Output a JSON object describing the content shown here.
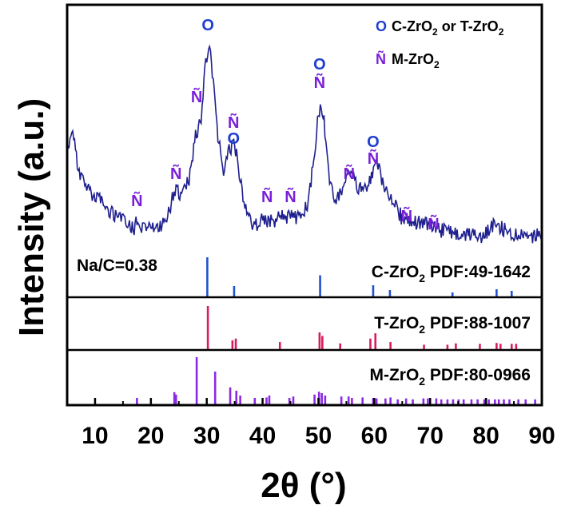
{
  "chart_data": {
    "type": "line",
    "xlabel": "2θ (°)",
    "ylabel": "Intensity (a.u.)",
    "xlim": [
      5,
      90
    ],
    "x_ticks": [
      10,
      20,
      30,
      40,
      50,
      60,
      70,
      80,
      90
    ],
    "x_tick_labels": [
      "10",
      "20",
      "30",
      "40",
      "50",
      "60",
      "70",
      "80",
      "90"
    ],
    "sample_label": "Na/C=0.38",
    "series": [
      {
        "color": "#1f1f8f",
        "x": [
          5,
          6,
          7,
          8,
          9,
          10,
          11,
          12,
          13,
          14,
          15,
          16,
          17,
          17.5,
          18,
          19,
          20,
          21,
          22,
          23,
          24,
          24.5,
          25,
          26,
          27,
          28,
          28.5,
          29,
          29.5,
          30,
          30.5,
          31,
          32,
          33,
          34,
          35,
          36,
          37,
          38,
          39,
          40,
          41,
          42,
          43,
          44,
          45,
          46,
          47,
          48,
          49,
          50,
          50.5,
          51,
          52,
          53,
          54,
          55,
          56,
          57,
          58,
          59,
          60,
          61,
          62,
          63,
          64,
          65,
          66,
          67,
          68,
          69,
          70,
          71,
          72,
          73,
          74,
          75,
          76,
          77,
          78,
          79,
          80,
          81,
          82,
          83,
          84,
          85,
          86,
          87,
          88,
          89,
          90
        ],
        "y": [
          520,
          600,
          430,
          390,
          360,
          340,
          325,
          305,
          285,
          270,
          255,
          235,
          225,
          245,
          235,
          225,
          215,
          225,
          235,
          275,
          345,
          370,
          350,
          370,
          420,
          590,
          600,
          620,
          800,
          880,
          920,
          820,
          560,
          450,
          520,
          540,
          415,
          285,
          245,
          240,
          265,
          250,
          245,
          265,
          270,
          265,
          260,
          275,
          305,
          460,
          650,
          670,
          620,
          390,
          335,
          350,
          410,
          420,
          380,
          360,
          400,
          460,
          440,
          360,
          340,
          300,
          260,
          250,
          245,
          245,
          238,
          230,
          225,
          215,
          210,
          205,
          200,
          200,
          195,
          195,
          195,
          210,
          235,
          240,
          225,
          210,
          200,
          200,
          195,
          195,
          200,
          200
        ]
      }
    ],
    "peak_markers": [
      {
        "x": 17.5,
        "symbol": "Ñ"
      },
      {
        "x": 24.5,
        "symbol": "Ñ"
      },
      {
        "x": 28.2,
        "symbol": "Ñ"
      },
      {
        "x": 30.2,
        "symbol": "O"
      },
      {
        "x": 34.8,
        "symbol": "Ñ"
      },
      {
        "x": 34.8,
        "symbol": "O"
      },
      {
        "x": 40.8,
        "symbol": "Ñ"
      },
      {
        "x": 45.0,
        "symbol": "Ñ"
      },
      {
        "x": 50.2,
        "symbol": "O"
      },
      {
        "x": 50.2,
        "symbol": "Ñ"
      },
      {
        "x": 55.5,
        "symbol": "Ñ"
      },
      {
        "x": 59.8,
        "symbol": "O"
      },
      {
        "x": 59.8,
        "symbol": "Ñ"
      },
      {
        "x": 65.8,
        "symbol": "Ñ"
      },
      {
        "x": 70.6,
        "symbol": "Ñ"
      }
    ],
    "legend": {
      "placement": "top-right",
      "entries": [
        {
          "symbol": "O",
          "label": "C-ZrO",
          "sub": "2",
          "label2": " or T-ZrO",
          "sub2": "2",
          "color": "#1f3fd0"
        },
        {
          "symbol": "Ñ",
          "label": "M-ZrO",
          "sub": "2",
          "label2": "",
          "sub2": "",
          "color": "#7a1fd8"
        }
      ]
    },
    "reference_panels": [
      {
        "phase": "C-ZrO",
        "sub": "2",
        "pdf": " PDF:49-1642",
        "color": "#2050d0",
        "positions": [
          30.1,
          34.9,
          50.3,
          59.8,
          62.8,
          74.0,
          81.9,
          84.6
        ],
        "intensities": [
          100,
          28,
          55,
          30,
          18,
          12,
          20,
          16
        ]
      },
      {
        "phase": "T-ZrO",
        "sub": "2",
        "pdf": " PDF:88-1007",
        "color": "#d81b60",
        "positions": [
          30.2,
          34.6,
          35.2,
          43.1,
          50.2,
          50.7,
          53.9,
          59.3,
          60.2,
          62.9,
          68.9,
          73.1,
          74.6,
          78.9,
          81.9,
          82.6,
          84.6,
          85.4
        ],
        "intensities": [
          100,
          22,
          26,
          18,
          40,
          32,
          15,
          26,
          38,
          18,
          12,
          12,
          15,
          14,
          16,
          14,
          14,
          14
        ]
      },
      {
        "phase": "M-ZrO",
        "sub": "2",
        "pdf": " PDF:80-0966",
        "color": "#8a2be2",
        "positions": [
          17.5,
          24.2,
          24.5,
          28.2,
          31.5,
          34.2,
          35.3,
          36.0,
          38.6,
          40.7,
          41.2,
          44.8,
          45.5,
          49.3,
          50.1,
          50.6,
          51.2,
          54.1,
          55.4,
          56.0,
          57.9,
          59.8,
          60.4,
          62.0,
          62.9,
          64.2,
          65.7,
          66.9,
          68.8,
          69.6,
          71.1,
          72.0,
          73.1,
          74.1,
          75.1,
          76.0,
          77.4,
          78.5,
          79.7,
          80.5,
          81.6,
          82.3,
          83.2,
          84.2,
          85.8,
          87.1,
          88.8
        ],
        "intensities": [
          15,
          27,
          22,
          100,
          70,
          37,
          30,
          20,
          15,
          16,
          20,
          15,
          18,
          22,
          28,
          25,
          20,
          18,
          18,
          15,
          16,
          15,
          14,
          14,
          16,
          12,
          14,
          12,
          14,
          14,
          14,
          12,
          12,
          12,
          12,
          12,
          12,
          12,
          12,
          12,
          12,
          12,
          12,
          12,
          12,
          12,
          12
        ]
      }
    ],
    "grid": false
  }
}
